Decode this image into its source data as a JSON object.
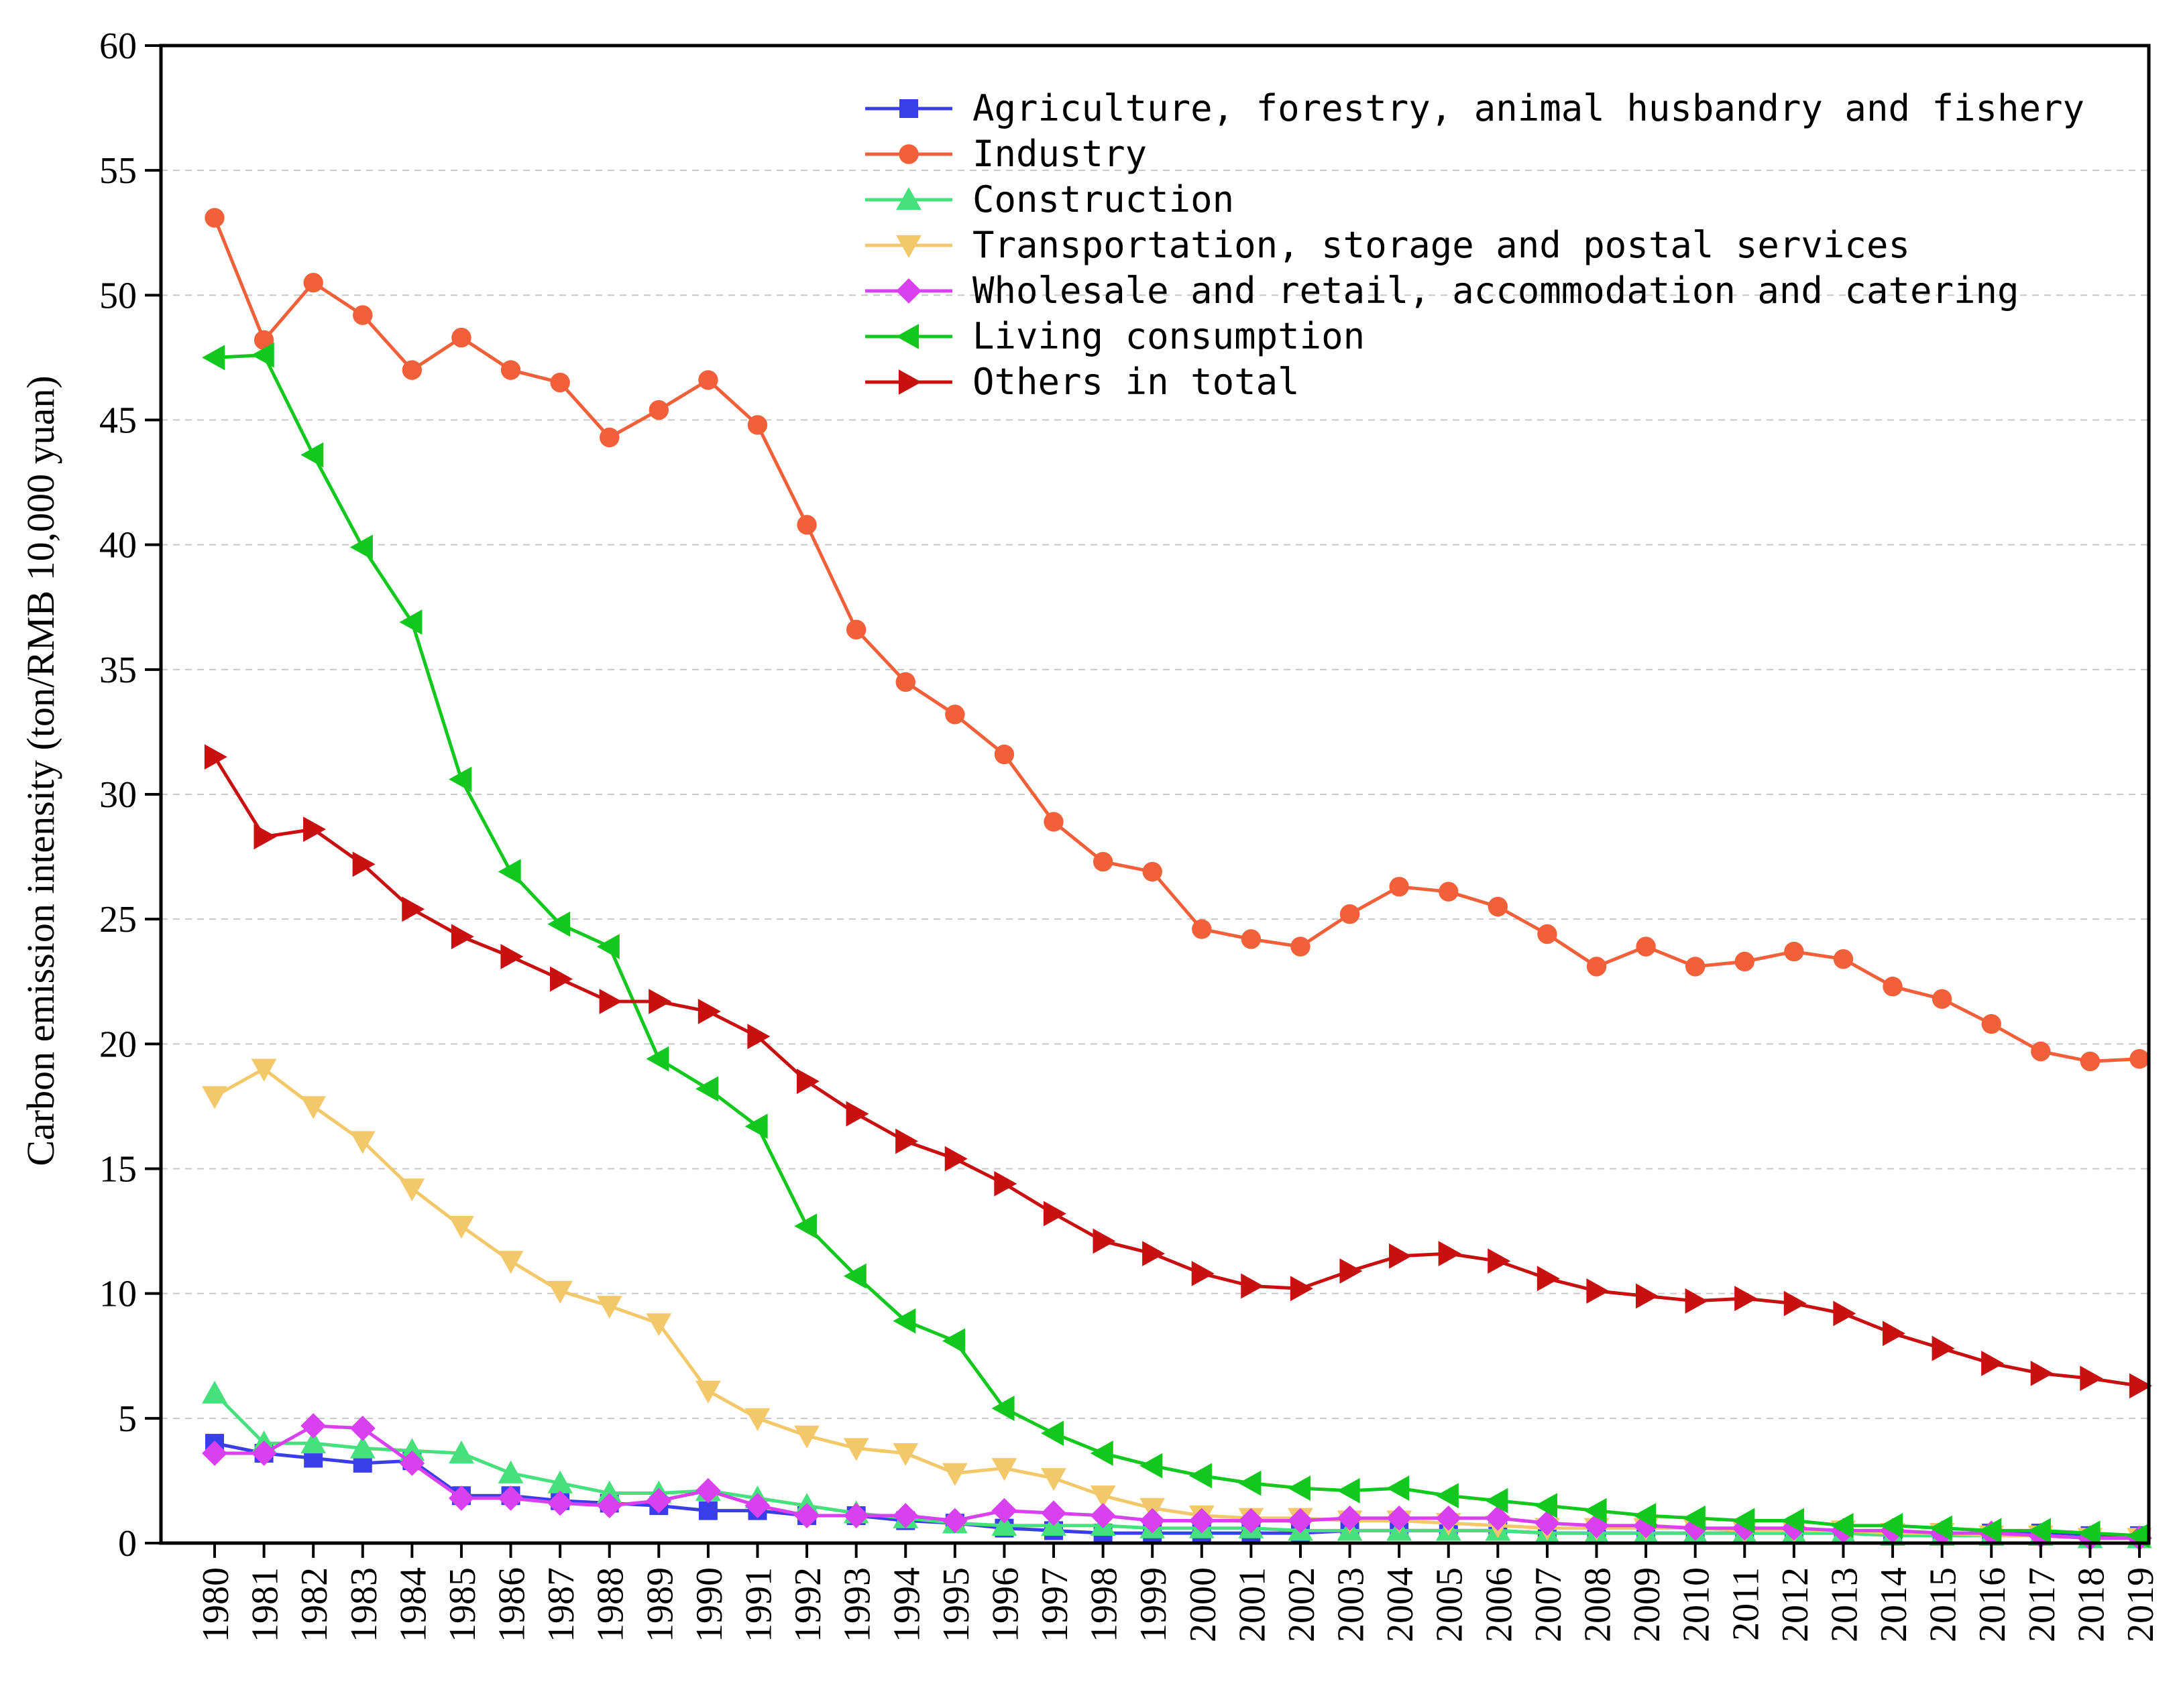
{
  "chart_data": {
    "type": "line",
    "title": "",
    "xlabel": "",
    "ylabel": "Carbon emission intensity (ton/RMB 10,000 yuan)",
    "ylim": [
      0,
      60
    ],
    "yticks": [
      0,
      5,
      10,
      15,
      20,
      25,
      30,
      35,
      40,
      45,
      50,
      55,
      60
    ],
    "grid": "horizontal dashed",
    "legend_position": "top-right",
    "x": [
      "1980",
      "1981",
      "1982",
      "1983",
      "1984",
      "1985",
      "1986",
      "1987",
      "1988",
      "1989",
      "1990",
      "1991",
      "1992",
      "1993",
      "1994",
      "1995",
      "1996",
      "1997",
      "1998",
      "1999",
      "2000",
      "2001",
      "2002",
      "2003",
      "2004",
      "2005",
      "2006",
      "2007",
      "2008",
      "2009",
      "2010",
      "2011",
      "2012",
      "2013",
      "2014",
      "2015",
      "2016",
      "2017",
      "2018",
      "2019"
    ],
    "series": [
      {
        "name": "Agriculture, forestry, animal husbandry and fishery",
        "color": "#3a3ee8",
        "marker": "square",
        "values": [
          4.0,
          3.6,
          3.4,
          3.2,
          3.3,
          1.9,
          1.9,
          1.7,
          1.6,
          1.5,
          1.3,
          1.3,
          1.1,
          1.1,
          0.9,
          0.8,
          0.6,
          0.5,
          0.4,
          0.4,
          0.4,
          0.4,
          0.4,
          0.5,
          0.5,
          0.5,
          0.5,
          0.4,
          0.4,
          0.4,
          0.4,
          0.4,
          0.4,
          0.4,
          0.4,
          0.4,
          0.4,
          0.4,
          0.3,
          0.3
        ]
      },
      {
        "name": "Industry",
        "color": "#f2603a",
        "marker": "circle",
        "values": [
          53.1,
          48.2,
          50.5,
          49.2,
          47.0,
          48.3,
          47.0,
          46.5,
          44.3,
          45.4,
          46.6,
          44.8,
          40.8,
          36.6,
          34.5,
          33.2,
          31.6,
          28.9,
          27.3,
          26.9,
          24.6,
          24.2,
          23.9,
          25.2,
          26.3,
          26.1,
          25.5,
          24.4,
          23.1,
          23.9,
          23.1,
          23.3,
          23.7,
          23.4,
          22.3,
          21.8,
          20.8,
          19.7,
          19.3,
          19.4
        ]
      },
      {
        "name": "Construction",
        "color": "#46e07c",
        "marker": "triangle-up",
        "values": [
          6.0,
          4.0,
          4.0,
          3.8,
          3.7,
          3.6,
          2.8,
          2.4,
          2.0,
          2.0,
          2.1,
          1.8,
          1.5,
          1.2,
          1.0,
          0.8,
          0.7,
          0.7,
          0.7,
          0.6,
          0.6,
          0.6,
          0.5,
          0.5,
          0.5,
          0.5,
          0.5,
          0.4,
          0.4,
          0.4,
          0.4,
          0.4,
          0.4,
          0.4,
          0.3,
          0.3,
          0.3,
          0.3,
          0.2,
          0.2
        ]
      },
      {
        "name": "Transportation, storage and postal services",
        "color": "#f2c86a",
        "marker": "triangle-down",
        "values": [
          17.9,
          19.0,
          17.5,
          16.1,
          14.2,
          12.7,
          11.3,
          10.1,
          9.5,
          8.8,
          6.1,
          5.0,
          4.3,
          3.8,
          3.6,
          2.8,
          3.0,
          2.6,
          1.9,
          1.4,
          1.1,
          1.0,
          1.0,
          0.9,
          0.9,
          0.8,
          0.7,
          0.6,
          0.6,
          0.6,
          0.6,
          0.5,
          0.5,
          0.5,
          0.4,
          0.4,
          0.3,
          0.3,
          0.2,
          0.2
        ]
      },
      {
        "name": "Wholesale and retail, accommodation and catering",
        "color": "#d840f0",
        "marker": "diamond",
        "values": [
          3.6,
          3.6,
          4.7,
          4.6,
          3.2,
          1.8,
          1.8,
          1.6,
          1.5,
          1.7,
          2.1,
          1.5,
          1.1,
          1.1,
          1.1,
          0.9,
          1.3,
          1.2,
          1.1,
          0.9,
          0.9,
          0.9,
          0.9,
          1.0,
          1.0,
          1.0,
          1.0,
          0.8,
          0.7,
          0.7,
          0.6,
          0.6,
          0.6,
          0.5,
          0.5,
          0.4,
          0.4,
          0.3,
          0.2,
          0.2
        ]
      },
      {
        "name": "Living consumption",
        "color": "#12c81e",
        "marker": "triangle-left",
        "values": [
          47.5,
          47.6,
          43.6,
          39.9,
          36.9,
          30.6,
          26.9,
          24.8,
          23.9,
          19.4,
          18.2,
          16.7,
          12.7,
          10.7,
          8.9,
          8.1,
          5.4,
          4.4,
          3.6,
          3.1,
          2.7,
          2.4,
          2.2,
          2.1,
          2.2,
          1.9,
          1.7,
          1.5,
          1.3,
          1.1,
          1.0,
          0.9,
          0.9,
          0.7,
          0.7,
          0.6,
          0.5,
          0.5,
          0.4,
          0.3
        ]
      },
      {
        "name": "Others in total",
        "color": "#c81010",
        "marker": "triangle-right",
        "values": [
          31.5,
          28.3,
          28.6,
          27.2,
          25.4,
          24.3,
          23.5,
          22.6,
          21.7,
          21.7,
          21.3,
          20.3,
          18.5,
          17.2,
          16.1,
          15.4,
          14.4,
          13.2,
          12.1,
          11.6,
          10.8,
          10.3,
          10.2,
          10.9,
          11.5,
          11.6,
          11.3,
          10.6,
          10.1,
          9.9,
          9.7,
          9.8,
          9.6,
          9.2,
          8.4,
          7.8,
          7.2,
          6.8,
          6.6,
          6.3
        ]
      }
    ]
  }
}
